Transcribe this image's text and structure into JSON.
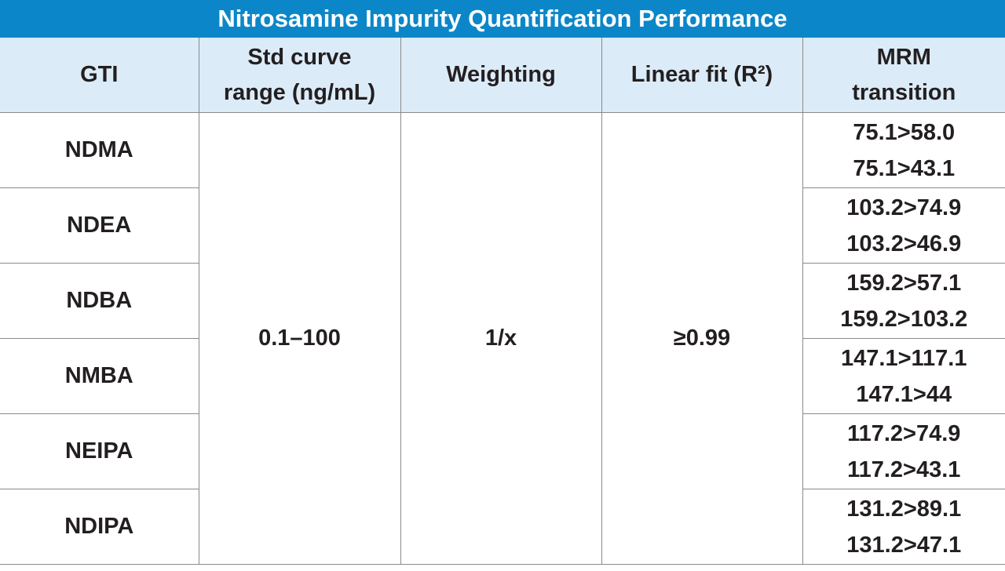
{
  "title": "Nitrosamine Impurity Quantification Performance",
  "table": {
    "headers": [
      "GTI",
      "Std curve range (ng/mL)",
      "Weighting",
      "Linear fit (R²)",
      "MRM transition"
    ],
    "shared": {
      "range": "0.1–100",
      "weighting": "1/x",
      "linear_fit": "≥0.99"
    },
    "rows": [
      {
        "gti": "NDMA",
        "mrm": [
          "75.1>58.0",
          "75.1>43.1"
        ]
      },
      {
        "gti": "NDEA",
        "mrm": [
          "103.2>74.9",
          "103.2>46.9"
        ]
      },
      {
        "gti": "NDBA",
        "mrm": [
          "159.2>57.1",
          "159.2>103.2"
        ]
      },
      {
        "gti": "NMBA",
        "mrm": [
          "147.1>117.1",
          "147.1>44"
        ]
      },
      {
        "gti": "NEIPA",
        "mrm": [
          "117.2>74.9",
          "117.2>43.1"
        ]
      },
      {
        "gti": "NDIPA",
        "mrm": [
          "131.2>89.1",
          "131.2>47.1"
        ]
      }
    ]
  }
}
